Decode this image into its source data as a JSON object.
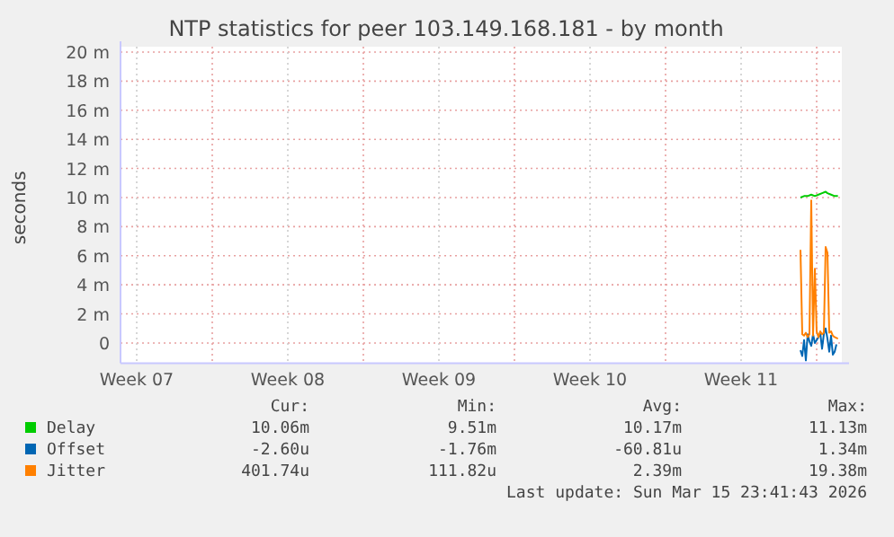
{
  "chart_data": {
    "type": "line",
    "title": "NTP statistics for peer 103.149.168.181 - by month",
    "ylabel": "seconds",
    "xlim": [
      "2026-02-10T18:00",
      "2026-03-16T04:00"
    ],
    "xticks": [
      {
        "value": "2026-02-11T12:00",
        "label": "Week 07"
      },
      {
        "value": "2026-02-18T12:00",
        "label": "Week 08"
      },
      {
        "value": "2026-02-25T12:00",
        "label": "Week 09"
      },
      {
        "value": "2026-03-04T12:00",
        "label": "Week 10"
      },
      {
        "value": "2026-03-11T12:00",
        "label": "Week 11"
      },
      {
        "value": "2026-02-15",
        "label": null
      },
      {
        "value": "2026-02-22",
        "label": null
      },
      {
        "value": "2026-03-01",
        "label": null
      },
      {
        "value": "2026-03-08",
        "label": null
      },
      {
        "value": "2026-03-15",
        "label": null
      }
    ],
    "ylim": [
      -1.4,
      20
    ],
    "yticks": [
      0,
      {
        "value": 2,
        "label": "2 m"
      },
      {
        "value": 4,
        "label": "4 m"
      },
      {
        "value": 6,
        "label": "6 m"
      },
      {
        "value": 8,
        "label": "8 m"
      },
      {
        "value": 10,
        "label": "10 m"
      },
      {
        "value": 12,
        "label": "12 m"
      },
      {
        "value": 14,
        "label": "14 m"
      },
      {
        "value": 16,
        "label": "16 m"
      },
      {
        "value": 18,
        "label": "18 m"
      },
      {
        "value": 20,
        "label": "20 m"
      }
    ],
    "grid": true,
    "legend": "bottom",
    "marker": "none",
    "line_style": "solid",
    "series": [
      {
        "name": "Delay",
        "color": "#00cc00",
        "x": [
          "2026-03-14T06:00",
          "2026-03-14T10:00",
          "2026-03-14T14:00",
          "2026-03-14T18:00",
          "2026-03-14T22:00",
          "2026-03-15T02:00",
          "2026-03-15T06:00",
          "2026-03-15T10:00",
          "2026-03-15T12:00",
          "2026-03-15T16:00",
          "2026-03-15T20:00",
          "2026-03-15T23:40"
        ],
        "values": [
          10.0,
          10.1,
          10.1,
          10.2,
          10.1,
          10.2,
          10.3,
          10.4,
          10.3,
          10.2,
          10.1,
          10.1
        ]
      },
      {
        "name": "Offset",
        "color": "#0066b3",
        "x": [
          "2026-03-14T06:00",
          "2026-03-14T08:00",
          "2026-03-14T10:00",
          "2026-03-14T12:00",
          "2026-03-14T14:00",
          "2026-03-14T16:00",
          "2026-03-14T18:00",
          "2026-03-14T20:00",
          "2026-03-14T22:00",
          "2026-03-15T00:00",
          "2026-03-15T02:00",
          "2026-03-15T04:00",
          "2026-03-15T06:00",
          "2026-03-15T08:00",
          "2026-03-15T10:00",
          "2026-03-15T12:00",
          "2026-03-15T14:00",
          "2026-03-15T16:00",
          "2026-03-15T18:00",
          "2026-03-15T20:00",
          "2026-03-15T22:00"
        ],
        "values": [
          -0.5,
          -0.9,
          0.2,
          -1.2,
          0.6,
          0.1,
          -0.2,
          0.6,
          0.0,
          0.2,
          0.4,
          0.7,
          -0.4,
          0.6,
          1.0,
          0.3,
          -0.6,
          0.5,
          -0.8,
          -0.6,
          -0.1
        ]
      },
      {
        "name": "Jitter",
        "color": "#ff8000",
        "x": [
          "2026-03-14T06:00",
          "2026-03-14T08:00",
          "2026-03-14T10:00",
          "2026-03-14T12:00",
          "2026-03-14T14:00",
          "2026-03-14T16:00",
          "2026-03-14T18:00",
          "2026-03-14T20:00",
          "2026-03-14T22:00",
          "2026-03-15T00:00",
          "2026-03-15T02:00",
          "2026-03-15T04:00",
          "2026-03-15T06:00",
          "2026-03-15T08:00",
          "2026-03-15T10:00",
          "2026-03-15T12:00",
          "2026-03-15T14:00",
          "2026-03-15T16:00",
          "2026-03-15T18:00",
          "2026-03-15T20:00",
          "2026-03-15T23:40"
        ],
        "values": [
          6.4,
          0.6,
          0.5,
          0.7,
          0.4,
          0.6,
          9.8,
          0.5,
          5.1,
          0.8,
          0.4,
          0.8,
          0.6,
          0.7,
          6.6,
          6.2,
          0.7,
          0.8,
          0.5,
          0.4,
          0.3
        ]
      }
    ],
    "annotations": [
      "Cur:",
      "Min:",
      "Avg:",
      "Max:",
      "10.06m",
      "9.51m",
      "10.17m",
      "11.13m",
      "-2.60u",
      "-1.76m",
      "-60.81u",
      "1.34m",
      "401.74u",
      "111.82u",
      "2.39m",
      "19.38m",
      "Last update: Sun Mar 15 23:41:43 2026"
    ]
  }
}
